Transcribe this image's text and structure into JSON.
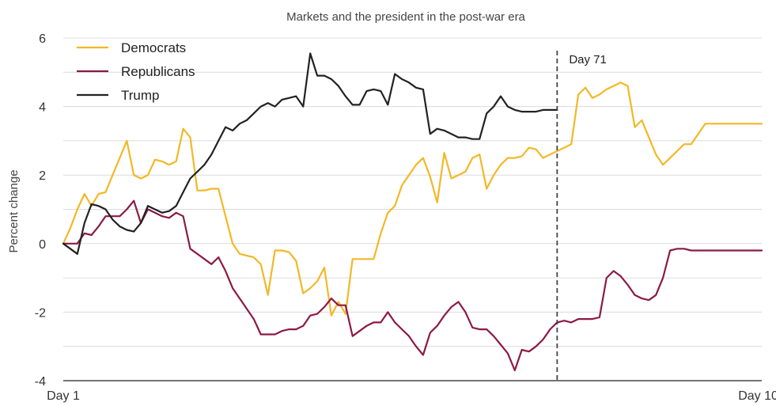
{
  "chart_data": {
    "type": "line",
    "title": "Markets and the president in the post-war era",
    "ylabel": "Percent change",
    "xlabel": "",
    "xlim": [
      1,
      100
    ],
    "ylim": [
      -4,
      6
    ],
    "yticks": [
      6,
      4,
      2,
      0,
      -2,
      -4
    ],
    "xtick_labels": [
      {
        "x": 1,
        "label": "Day 1"
      },
      {
        "x": 100,
        "label": "Day 100"
      }
    ],
    "grid": true,
    "legend_position": "top-left",
    "annotation": {
      "x": 71,
      "label": "Day 71",
      "style": "dashed-vertical"
    },
    "series": [
      {
        "name": "Democrats",
        "color": "#f2b826",
        "x": [
          1,
          2,
          3,
          4,
          5,
          6,
          7,
          8,
          9,
          10,
          11,
          12,
          13,
          14,
          15,
          16,
          17,
          18,
          19,
          20,
          21,
          22,
          23,
          24,
          25,
          26,
          27,
          28,
          29,
          30,
          31,
          32,
          33,
          34,
          35,
          36,
          37,
          38,
          39,
          40,
          41,
          42,
          43,
          44,
          45,
          46,
          47,
          48,
          49,
          50,
          51,
          52,
          53,
          54,
          55,
          56,
          57,
          58,
          59,
          60,
          61,
          62,
          63,
          64,
          65,
          66,
          67,
          68,
          69,
          70,
          71,
          72,
          73,
          74,
          75,
          76,
          77,
          78,
          79,
          80,
          81,
          82,
          83,
          84,
          85,
          86,
          87,
          88,
          89,
          90,
          91,
          92,
          93,
          94,
          95,
          96,
          97,
          98,
          99,
          100
        ],
        "values": [
          0,
          0.45,
          1.0,
          1.45,
          1.1,
          1.45,
          1.5,
          2.0,
          2.5,
          3.0,
          2.0,
          1.9,
          2.0,
          2.45,
          2.4,
          2.3,
          2.4,
          3.35,
          3.1,
          1.55,
          1.55,
          1.6,
          1.6,
          0.8,
          0.0,
          -0.3,
          -0.35,
          -0.4,
          -0.6,
          -1.5,
          -0.2,
          -0.2,
          -0.25,
          -0.5,
          -1.45,
          -1.3,
          -1.1,
          -0.7,
          -2.1,
          -1.7,
          -2.05,
          -0.45,
          -0.45,
          -0.45,
          -0.45,
          0.3,
          0.9,
          1.1,
          1.7,
          2.0,
          2.3,
          2.5,
          1.95,
          1.2,
          2.65,
          1.9,
          2.0,
          2.1,
          2.5,
          2.6,
          1.6,
          2.0,
          2.3,
          2.5,
          2.5,
          2.55,
          2.8,
          2.75,
          2.5,
          2.6,
          2.7,
          2.8,
          2.9,
          4.35,
          4.55,
          4.25,
          4.35,
          4.5,
          4.6,
          4.7,
          4.6,
          3.4,
          3.6,
          3.1,
          2.6,
          2.3,
          2.5,
          2.7,
          2.9,
          2.9,
          3.2,
          3.5,
          3.5,
          3.5,
          3.5,
          3.5,
          3.5,
          3.5,
          3.5,
          3.5
        ]
      },
      {
        "name": "Republicans",
        "color": "#8b1a46",
        "x": [
          1,
          2,
          3,
          4,
          5,
          6,
          7,
          8,
          9,
          10,
          11,
          12,
          13,
          14,
          15,
          16,
          17,
          18,
          19,
          20,
          21,
          22,
          23,
          24,
          25,
          26,
          27,
          28,
          29,
          30,
          31,
          32,
          33,
          34,
          35,
          36,
          37,
          38,
          39,
          40,
          41,
          42,
          43,
          44,
          45,
          46,
          47,
          48,
          49,
          50,
          51,
          52,
          53,
          54,
          55,
          56,
          57,
          58,
          59,
          60,
          61,
          62,
          63,
          64,
          65,
          66,
          67,
          68,
          69,
          70,
          71,
          72,
          73,
          74,
          75,
          76,
          77,
          78,
          79,
          80,
          81,
          82,
          83,
          84,
          85,
          86,
          87,
          88,
          89,
          90,
          91,
          92,
          93,
          94,
          95,
          96,
          97,
          98,
          99,
          100
        ],
        "values": [
          0,
          0,
          0,
          0.3,
          0.25,
          0.5,
          0.8,
          0.8,
          0.8,
          1.0,
          1.25,
          0.6,
          1.0,
          0.9,
          0.8,
          0.75,
          0.9,
          0.8,
          -0.15,
          -0.3,
          -0.45,
          -0.6,
          -0.4,
          -0.8,
          -1.3,
          -1.6,
          -1.9,
          -2.2,
          -2.65,
          -2.65,
          -2.65,
          -2.55,
          -2.5,
          -2.5,
          -2.4,
          -2.1,
          -2.05,
          -1.85,
          -1.6,
          -1.8,
          -1.8,
          -2.7,
          -2.55,
          -2.4,
          -2.3,
          -2.3,
          -2.0,
          -2.3,
          -2.5,
          -2.7,
          -3.0,
          -3.25,
          -2.6,
          -2.4,
          -2.1,
          -1.85,
          -1.7,
          -2.0,
          -2.45,
          -2.5,
          -2.5,
          -2.7,
          -2.95,
          -3.2,
          -3.7,
          -3.1,
          -3.15,
          -3.0,
          -2.8,
          -2.5,
          -2.3,
          -2.25,
          -2.3,
          -2.2,
          -2.2,
          -2.2,
          -2.15,
          -1.0,
          -0.8,
          -0.95,
          -1.2,
          -1.5,
          -1.6,
          -1.65,
          -1.5,
          -1.0,
          -0.2,
          -0.15,
          -0.15,
          -0.2,
          -0.2,
          -0.2,
          -0.2,
          -0.2,
          -0.2,
          -0.2,
          -0.2,
          -0.2,
          -0.2,
          -0.2
        ]
      },
      {
        "name": "Trump",
        "color": "#222222",
        "x": [
          1,
          2,
          3,
          4,
          5,
          6,
          7,
          8,
          9,
          10,
          11,
          12,
          13,
          14,
          15,
          16,
          17,
          18,
          19,
          20,
          21,
          22,
          23,
          24,
          25,
          26,
          27,
          28,
          29,
          30,
          31,
          32,
          33,
          34,
          35,
          36,
          37,
          38,
          39,
          40,
          41,
          42,
          43,
          44,
          45,
          46,
          47,
          48,
          49,
          50,
          51,
          52,
          53,
          54,
          55,
          56,
          57,
          58,
          59,
          60,
          61,
          62,
          63,
          64,
          65,
          66,
          67,
          68,
          69,
          70,
          71
        ],
        "values": [
          0,
          -0.15,
          -0.3,
          0.6,
          1.15,
          1.1,
          1.0,
          0.7,
          0.5,
          0.4,
          0.35,
          0.6,
          1.1,
          1.0,
          0.9,
          0.95,
          1.1,
          1.5,
          1.9,
          2.1,
          2.3,
          2.6,
          3.0,
          3.4,
          3.3,
          3.5,
          3.6,
          3.8,
          4.0,
          4.1,
          4.0,
          4.2,
          4.25,
          4.3,
          4.0,
          5.55,
          4.9,
          4.9,
          4.8,
          4.6,
          4.3,
          4.05,
          4.05,
          4.45,
          4.5,
          4.45,
          4.05,
          4.95,
          4.8,
          4.7,
          4.55,
          4.5,
          3.2,
          3.35,
          3.3,
          3.2,
          3.1,
          3.1,
          3.05,
          3.05,
          3.8,
          4.0,
          4.3,
          4.0,
          3.9,
          3.85,
          3.85,
          3.85,
          3.9,
          3.9,
          3.9
        ]
      }
    ]
  }
}
